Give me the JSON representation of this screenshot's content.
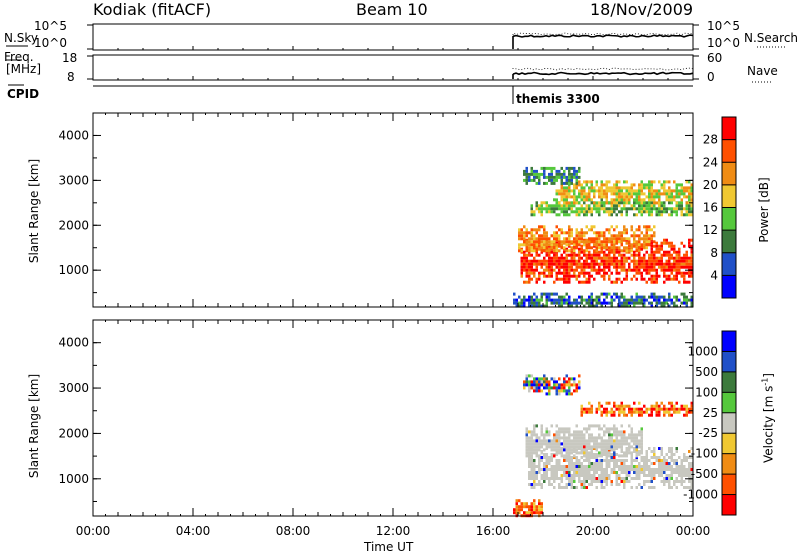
{
  "header": {
    "station": "Kodiak (fitACF)",
    "beam": "Beam 10",
    "date": "18/Nov/2009"
  },
  "strips": {
    "nsky_label": "N.Sky",
    "nsearch_label": "N.Search",
    "nsky_ticks": [
      "10^5",
      "10^0"
    ],
    "nsearch_ticks": [
      "10^5",
      "10^0"
    ],
    "freq_label_1": "Freq.",
    "freq_label_2": "[MHz]",
    "freq_ticks": [
      "18",
      "8"
    ],
    "nave_label": "Nave",
    "nave_ticks": [
      "60",
      "0"
    ],
    "cpid_label": "CPID",
    "cpid_value": "themis 3300"
  },
  "colors": {
    "power_scale": [
      "#0000ff",
      "#2050c8",
      "#3c7a3c",
      "#55c83c",
      "#f0c832",
      "#f08c14",
      "#ff5000",
      "#ff0000"
    ],
    "velocity_scale": [
      "#0000ff",
      "#2050c8",
      "#3c7a3c",
      "#55c83c",
      "#c8c8c0",
      "#f0c832",
      "#f08c14",
      "#ff5000",
      "#ff0000"
    ],
    "ground_scatter": "#c8c8c0"
  },
  "chart_data": [
    {
      "type": "heatmap",
      "panel": "power",
      "ylabel": "Slant Range [km]",
      "ylim": [
        180,
        4500
      ],
      "yticks": [
        "4000",
        "3000",
        "2000",
        "1000"
      ],
      "xlim_hours": [
        0,
        24
      ],
      "colorbar_label": "Power [dB]",
      "colorbar_ticks": [
        "28",
        "24",
        "20",
        "16",
        "12",
        "8",
        "4"
      ],
      "colorbar_range": [
        0,
        32
      ],
      "data_start_hour": 16.8,
      "bands": [
        {
          "range_km": [
            700,
            1700
          ],
          "hours": [
            17.1,
            24.0
          ],
          "value": 28
        },
        {
          "range_km": [
            1400,
            2000
          ],
          "hours": [
            17.0,
            22.5
          ],
          "value": 22
        },
        {
          "range_km": [
            2200,
            2600
          ],
          "hours": [
            17.5,
            24.0
          ],
          "value": 14
        },
        {
          "range_km": [
            2500,
            3000
          ],
          "hours": [
            18.5,
            24.0
          ],
          "value": 18
        },
        {
          "range_km": [
            2900,
            3300
          ],
          "hours": [
            17.2,
            19.5
          ],
          "value": 10
        },
        {
          "range_km": [
            180,
            500
          ],
          "hours": [
            16.8,
            24.0
          ],
          "value": 8
        }
      ]
    },
    {
      "type": "heatmap",
      "panel": "velocity",
      "ylabel": "Slant Range [km]",
      "ylim": [
        180,
        4500
      ],
      "yticks": [
        "4000",
        "3000",
        "2000",
        "1000"
      ],
      "xlim_hours": [
        0,
        24
      ],
      "colorbar_label": "Velocity [m s",
      "colorbar_label_sup": "-1",
      "colorbar_label_end": "]",
      "colorbar_ticks": [
        "1000",
        "500",
        "100",
        "25",
        "-25",
        "-100",
        "-500",
        "-1000"
      ],
      "data_start_hour": 16.8,
      "bands": [
        {
          "range_km": [
            800,
            1700
          ],
          "hours": [
            17.4,
            24.0
          ],
          "category": "ground_scatter"
        },
        {
          "range_km": [
            1500,
            2200
          ],
          "hours": [
            17.3,
            22.0
          ],
          "category": "ground_scatter"
        },
        {
          "range_km": [
            2400,
            2700
          ],
          "hours": [
            19.5,
            24.0
          ],
          "category": "negative"
        },
        {
          "range_km": [
            2900,
            3300
          ],
          "hours": [
            17.2,
            19.5
          ],
          "category": "mixed"
        },
        {
          "range_km": [
            180,
            550
          ],
          "hours": [
            16.8,
            18.0
          ],
          "category": "negative"
        }
      ]
    }
  ],
  "x_axis": {
    "label": "Time UT",
    "ticks": [
      "00:00",
      "04:00",
      "08:00",
      "12:00",
      "16:00",
      "20:00",
      "00:00"
    ]
  }
}
